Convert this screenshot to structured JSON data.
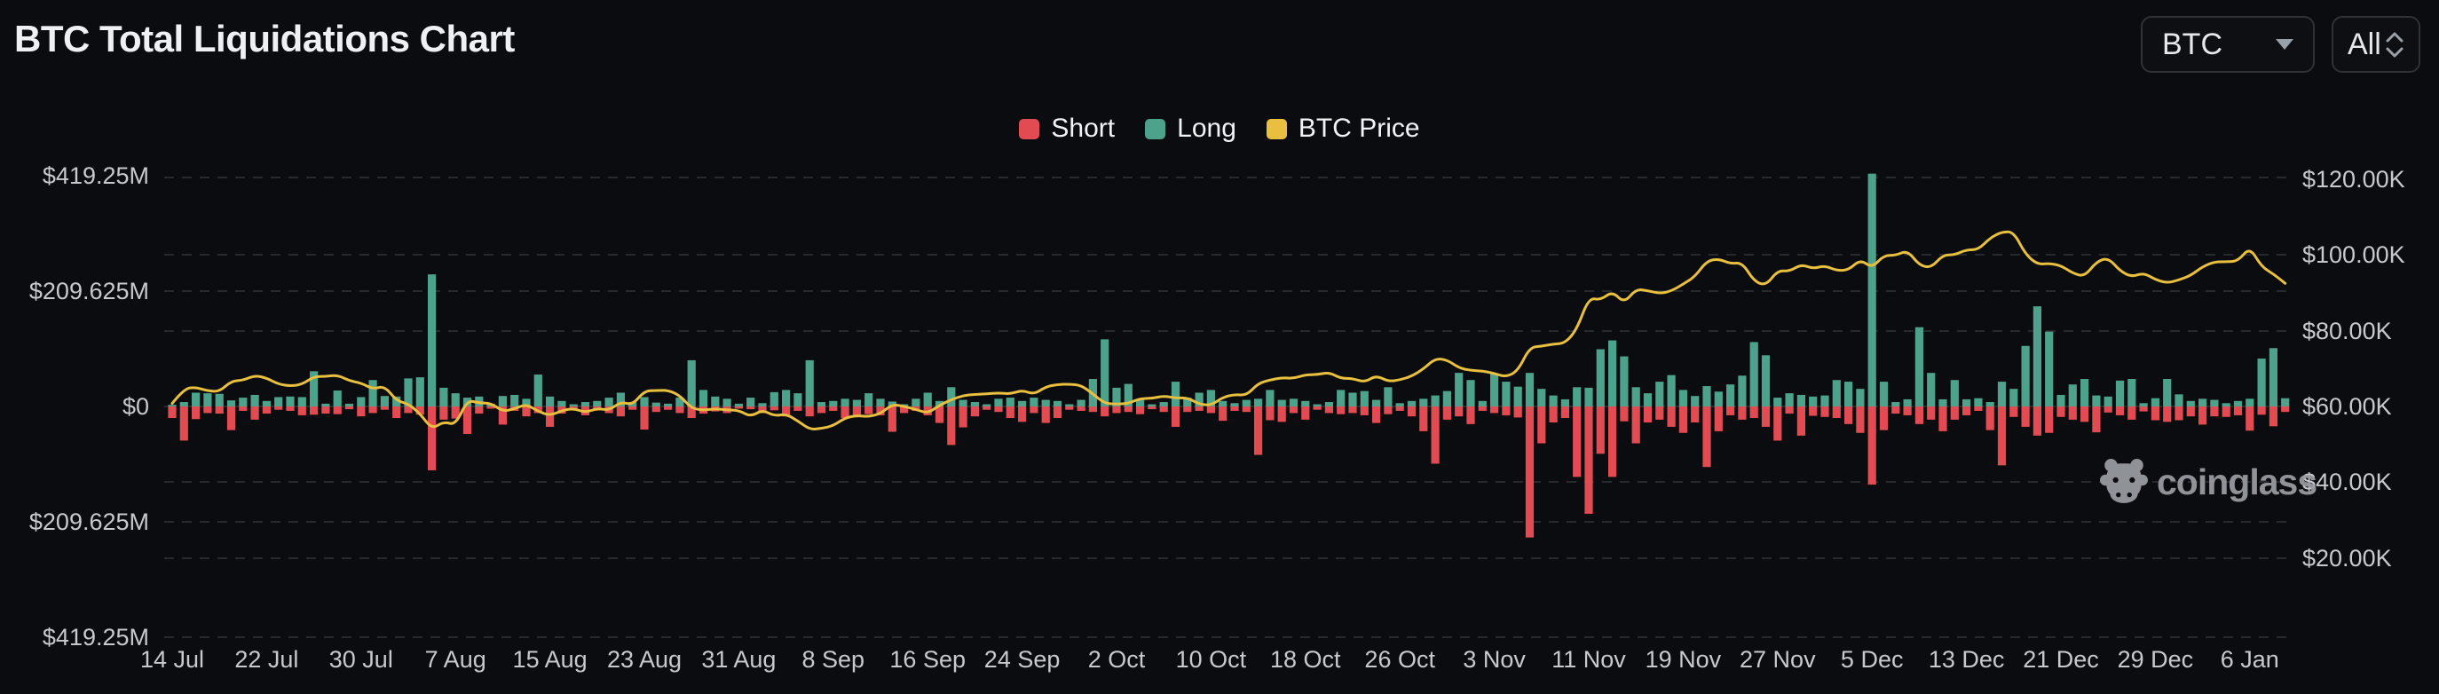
{
  "header": {
    "title": "BTC Total Liquidations Chart",
    "symbol_select": {
      "value": "BTC"
    },
    "range_select": {
      "value": "All"
    }
  },
  "legend": {
    "items": [
      {
        "label": "Short",
        "color": "#e24b52"
      },
      {
        "label": "Long",
        "color": "#4da28c"
      },
      {
        "label": "BTC Price",
        "color": "#e9bf40"
      }
    ]
  },
  "watermark": {
    "text": "coinglass"
  },
  "chart_data": {
    "type": "bar",
    "subtype": "diverging-bars-with-line-overlay",
    "title": "BTC Total Liquidations Chart",
    "grid": "dashed-horizontal",
    "legend_position": "top-center",
    "start_date": "14 Jul",
    "end_date": "9 Jan",
    "x_tick_labels": [
      "14 Jul",
      "22 Jul",
      "30 Jul",
      "7 Aug",
      "15 Aug",
      "23 Aug",
      "31 Aug",
      "8 Sep",
      "16 Sep",
      "24 Sep",
      "2 Oct",
      "10 Oct",
      "18 Oct",
      "26 Oct",
      "3 Nov",
      "11 Nov",
      "19 Nov",
      "27 Nov",
      "5 Dec",
      "13 Dec",
      "21 Dec",
      "29 Dec",
      "6 Jan"
    ],
    "x_tick_day_interval": 8,
    "left_axis": {
      "tick_labels": [
        "$419.25M",
        "$209.625M",
        "$0",
        "$209.625M",
        "$419.25M"
      ],
      "unit": "liquidations (USD, millions); Long plotted up, Short plotted down",
      "max_abs_m": 419.25
    },
    "right_axis": {
      "tick_labels": [
        "$120.00K",
        "$100.00K",
        "$80.00K",
        "$60.00K",
        "$40.00K",
        "$20.00K"
      ],
      "unit": "BTC price (USD, thousands)"
    },
    "series": [
      {
        "name": "Short",
        "type": "bar",
        "direction": "down",
        "color": "#e24b52",
        "unit": "M USD",
        "values": [
          21,
          62,
          23,
          12,
          13,
          43,
          8,
          24,
          13,
          6,
          8,
          16,
          15,
          13,
          14,
          5,
          18,
          12,
          6,
          21,
          12,
          15,
          116,
          24,
          22,
          50,
          13,
          4,
          33,
          8,
          18,
          12,
          37,
          13,
          4,
          16,
          5,
          12,
          18,
          6,
          42,
          10,
          6,
          12,
          21,
          13,
          9,
          12,
          4,
          5,
          12,
          7,
          18,
          8,
          18,
          12,
          8,
          21,
          18,
          14,
          16,
          46,
          12,
          8,
          16,
          30,
          70,
          38,
          18,
          6,
          10,
          21,
          28,
          12,
          30,
          21,
          6,
          8,
          10,
          18,
          12,
          10,
          14,
          5,
          10,
          37,
          10,
          8,
          12,
          26,
          8,
          10,
          88,
          25,
          28,
          12,
          24,
          6,
          12,
          14,
          12,
          16,
          30,
          14,
          8,
          18,
          45,
          104,
          24,
          18,
          32,
          8,
          12,
          16,
          20,
          238,
          67,
          29,
          21,
          128,
          195,
          86,
          128,
          27,
          67,
          29,
          24,
          37,
          48,
          29,
          110,
          45,
          16,
          24,
          21,
          37,
          62,
          13,
          53,
          17,
          19,
          21,
          32,
          48,
          142,
          43,
          13,
          16,
          32,
          24,
          45,
          24,
          16,
          8,
          43,
          107,
          19,
          37,
          53,
          48,
          19,
          24,
          28,
          47,
          11,
          16,
          24,
          9,
          25,
          28,
          25,
          18,
          33,
          18,
          19,
          16,
          44,
          15,
          36,
          10
        ]
      },
      {
        "name": "Long",
        "type": "bar",
        "direction": "up",
        "color": "#4da28c",
        "unit": "M USD",
        "values": [
          3,
          8,
          25,
          24,
          23,
          11,
          16,
          21,
          10,
          17,
          18,
          17,
          64,
          5,
          29,
          5,
          17,
          48,
          19,
          18,
          51,
          53,
          240,
          34,
          24,
          16,
          18,
          5,
          19,
          21,
          14,
          58,
          18,
          10,
          4,
          8,
          10,
          16,
          25,
          8,
          17,
          7,
          5,
          16,
          84,
          30,
          18,
          14,
          5,
          16,
          6,
          26,
          30,
          24,
          84,
          8,
          10,
          14,
          12,
          24,
          14,
          9,
          4,
          14,
          25,
          10,
          35,
          12,
          8,
          4,
          14,
          16,
          10,
          16,
          12,
          10,
          4,
          12,
          50,
          122,
          34,
          41,
          12,
          4,
          8,
          45,
          16,
          25,
          30,
          10,
          6,
          12,
          14,
          30,
          12,
          14,
          10,
          4,
          8,
          30,
          25,
          28,
          12,
          35,
          6,
          10,
          14,
          20,
          28,
          61,
          48,
          10,
          59,
          45,
          36,
          61,
          32,
          20,
          13,
          35,
          34,
          104,
          120,
          91,
          35,
          24,
          45,
          57,
          30,
          19,
          37,
          27,
          40,
          56,
          117,
          93,
          16,
          24,
          21,
          18,
          20,
          48,
          45,
          32,
          423,
          45,
          8,
          13,
          144,
          61,
          13,
          48,
          13,
          15,
          8,
          45,
          32,
          110,
          182,
          136,
          21,
          40,
          50,
          20,
          18,
          47,
          50,
          6,
          15,
          50,
          22,
          10,
          14,
          12,
          6,
          10,
          14,
          87,
          106,
          15
        ]
      },
      {
        "name": "BTC Price",
        "type": "line",
        "color": "#e9bf40",
        "unit": "K USD",
        "values": [
          60.8,
          64.7,
          65.1,
          64.1,
          63.9,
          66.7,
          66.9,
          68.2,
          67.5,
          65.9,
          65.4,
          65.8,
          67.9,
          67.9,
          68.3,
          66.8,
          66.2,
          64.6,
          65.4,
          61.5,
          60.7,
          58.1,
          54.0,
          56.0,
          55.1,
          61.7,
          60.9,
          60.9,
          58.7,
          59.4,
          60.6,
          58.7,
          57.6,
          58.9,
          59.5,
          58.4,
          59.5,
          59.0,
          61.2,
          60.4,
          64.1,
          64.2,
          64.3,
          62.9,
          59.5,
          59.0,
          59.4,
          59.1,
          59.0,
          57.3,
          59.1,
          57.5,
          58.0,
          56.2,
          53.9,
          54.2,
          54.9,
          57.0,
          57.6,
          57.3,
          58.1,
          60.6,
          60.0,
          59.2,
          58.2,
          60.3,
          61.8,
          62.9,
          63.2,
          63.3,
          63.6,
          63.3,
          64.3,
          63.2,
          65.2,
          65.8,
          65.9,
          65.6,
          63.3,
          60.8,
          60.6,
          60.8,
          62.1,
          62.1,
          62.8,
          62.2,
          62.3,
          60.6,
          60.3,
          62.4,
          63.2,
          62.9,
          66.1,
          67.0,
          67.6,
          67.4,
          68.4,
          68.4,
          69.0,
          67.4,
          67.4,
          66.4,
          68.2,
          66.6,
          67.0,
          68.0,
          69.9,
          72.7,
          72.3,
          70.2,
          69.5,
          69.4,
          68.7,
          67.8,
          69.4,
          75.6,
          75.9,
          76.5,
          76.7,
          80.4,
          88.7,
          88.1,
          90.4,
          87.3,
          91.0,
          90.6,
          89.8,
          90.5,
          92.3,
          94.3,
          98.4,
          99.0,
          97.7,
          98.0,
          93.1,
          91.9,
          95.9,
          95.7,
          97.5,
          96.4,
          97.2,
          95.9,
          96.0,
          98.8,
          96.6,
          99.9,
          99.9,
          101.2,
          97.3,
          96.6,
          100.0,
          100.0,
          101.4,
          101.4,
          104.5,
          106.1,
          106.1,
          100.2,
          97.5,
          97.8,
          97.2,
          95.2,
          94.3,
          98.2,
          99.3,
          95.8,
          94.2,
          95.3,
          93.5,
          92.6,
          93.4,
          94.6,
          96.9,
          98.2,
          98.2,
          98.4,
          102.1,
          96.9,
          95.0,
          92.5
        ]
      }
    ]
  }
}
